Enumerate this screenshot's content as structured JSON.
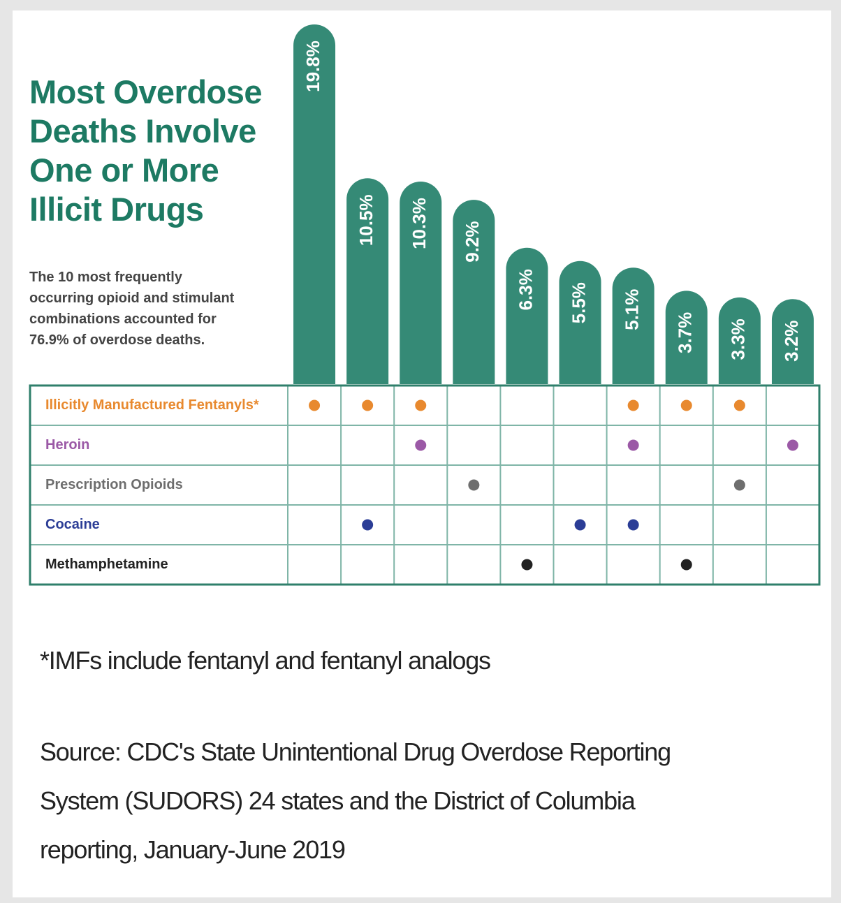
{
  "chart_data": {
    "type": "bar",
    "title": [
      "Most Overdose",
      "Deaths Involve",
      "One or More",
      "Illicit Drugs"
    ],
    "subtitle": [
      "The 10 most frequently",
      "occurring opioid and stimulant",
      "combinations accounted for",
      "76.9% of overdose deaths."
    ],
    "categories": [
      null,
      null,
      null,
      null,
      null,
      null,
      null,
      null,
      null,
      null
    ],
    "values": [
      19.8,
      10.5,
      10.3,
      9.2,
      6.3,
      5.5,
      5.1,
      3.7,
      3.3,
      3.2
    ],
    "value_labels": [
      "19.8%",
      "10.5%",
      "10.3%",
      "9.2%",
      "6.3%",
      "5.5%",
      "5.1%",
      "3.7%",
      "3.3%",
      "3.2%"
    ],
    "color": "#358a76",
    "rows": [
      {
        "name": "Illicitly Manufactured Fentanyls*",
        "color": "#e8892e",
        "marks": [
          true,
          true,
          true,
          false,
          false,
          false,
          true,
          true,
          true,
          false
        ]
      },
      {
        "name": "Heroin",
        "color": "#9b59a6",
        "marks": [
          false,
          false,
          true,
          false,
          false,
          false,
          true,
          false,
          false,
          true
        ]
      },
      {
        "name": "Prescription Opioids",
        "color": "#6e6e6e",
        "marks": [
          false,
          false,
          false,
          true,
          false,
          false,
          false,
          false,
          true,
          false
        ]
      },
      {
        "name": "Cocaine",
        "color": "#2b3d96",
        "marks": [
          false,
          true,
          false,
          false,
          false,
          true,
          true,
          false,
          false,
          false
        ]
      },
      {
        "name": "Methamphetamine",
        "color": "#222222",
        "marks": [
          false,
          false,
          false,
          false,
          true,
          false,
          false,
          true,
          false,
          false
        ]
      }
    ],
    "footnote": "*IMFs include fentanyl and fentanyl analogs",
    "source": [
      "Source: CDC's State Unintentional Drug Overdose Reporting",
      "System (SUDORS) 24 states and the District of Columbia",
      "reporting, January-June 2019"
    ]
  }
}
